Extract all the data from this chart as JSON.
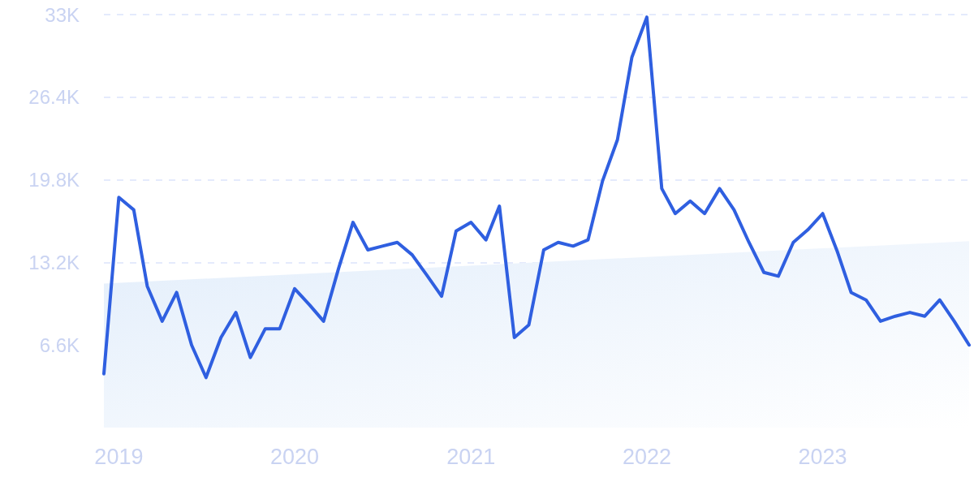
{
  "chart_data": {
    "type": "line",
    "x": [
      "2018-12",
      "2019-01",
      "2019-02",
      "2019-03",
      "2019-04",
      "2019-05",
      "2019-06",
      "2019-07",
      "2019-08",
      "2019-09",
      "2019-10",
      "2019-11",
      "2019-12",
      "2020-01",
      "2020-02",
      "2020-03",
      "2020-04",
      "2020-05",
      "2020-06",
      "2020-07",
      "2020-08",
      "2020-09",
      "2020-10",
      "2020-11",
      "2020-12",
      "2021-01",
      "2021-02",
      "2021-03",
      "2021-04",
      "2021-05",
      "2021-06",
      "2021-07",
      "2021-08",
      "2021-09",
      "2021-10",
      "2021-11",
      "2021-12",
      "2022-01",
      "2022-02",
      "2022-03",
      "2022-04",
      "2022-05",
      "2022-06",
      "2022-07",
      "2022-08",
      "2022-09",
      "2022-10",
      "2022-11",
      "2022-12",
      "2023-01",
      "2023-02",
      "2023-03",
      "2023-04",
      "2023-05",
      "2023-06",
      "2023-07",
      "2023-08",
      "2023-09",
      "2023-10",
      "2023-11"
    ],
    "series": [
      {
        "type": "area",
        "color": "#e3eefb",
        "x": [
          "2018-12",
          "2023-11"
        ],
        "values": [
          11500,
          14900
        ]
      },
      {
        "color": "#2f5fe0",
        "values": [
          4300,
          18400,
          17400,
          11300,
          8500,
          10800,
          6600,
          4000,
          7200,
          9200,
          5600,
          7900,
          7900,
          11100,
          9800,
          8500,
          12700,
          16400,
          14200,
          14500,
          14800,
          13800,
          12200,
          10500,
          15700,
          16400,
          15000,
          17700,
          7200,
          8200,
          14200,
          14800,
          14500,
          15000,
          19700,
          23000,
          29600,
          32800,
          19100,
          17100,
          18100,
          17100,
          19100,
          17400,
          14800,
          12400,
          12100,
          14800,
          15800,
          17100,
          14000,
          10800,
          10200,
          8500,
          8900,
          9200,
          8900,
          10200,
          8500,
          6600
        ]
      }
    ],
    "xlim": [
      "2018-12",
      "2023-11"
    ],
    "xticks": [
      "2019",
      "2020",
      "2021",
      "2022",
      "2023"
    ],
    "ylim": [
      0,
      33000
    ],
    "yticks": [
      {
        "value": 6600,
        "label": "6.6K"
      },
      {
        "value": 13200,
        "label": "13.2K"
      },
      {
        "value": 19800,
        "label": "19.8K"
      },
      {
        "value": 26400,
        "label": "26.4K"
      },
      {
        "value": 33000,
        "label": "33K"
      }
    ],
    "grid": "y",
    "marker": "none",
    "line_style": "solid"
  }
}
